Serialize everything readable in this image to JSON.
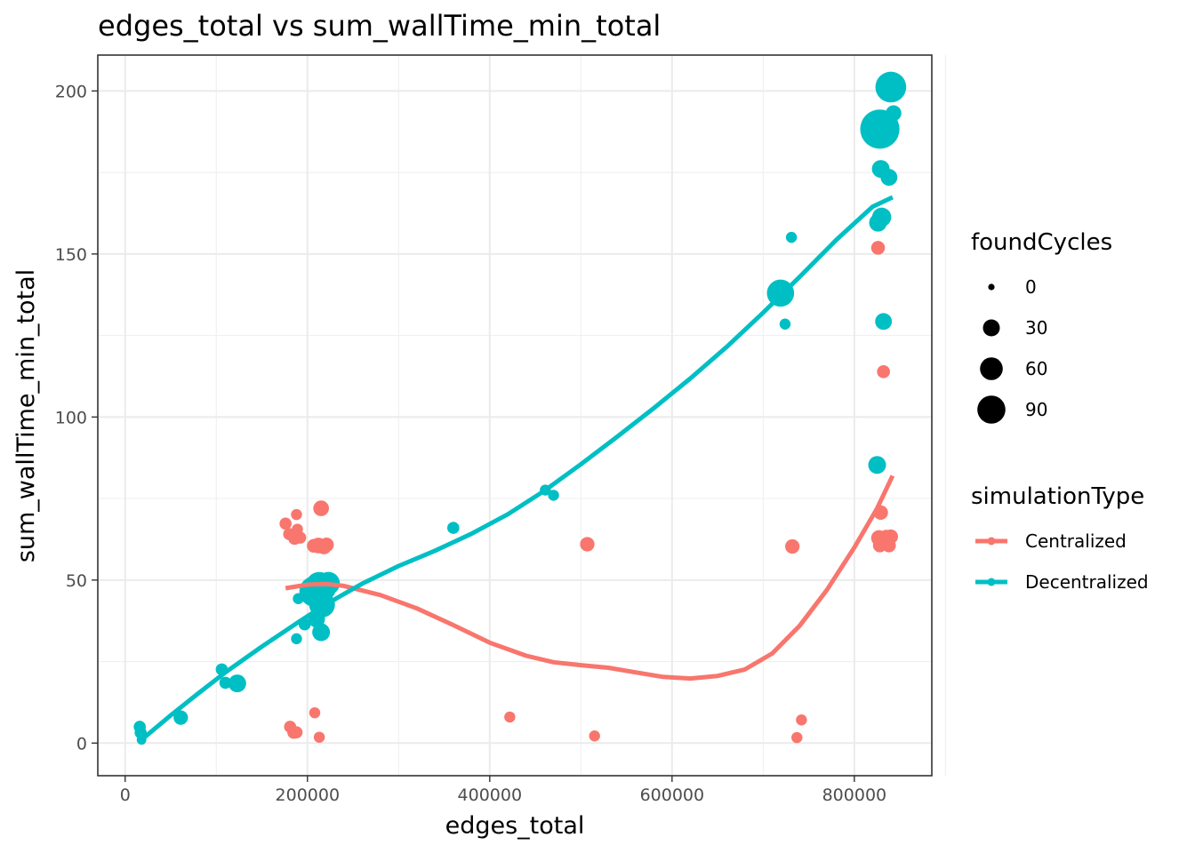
{
  "chart_data": {
    "type": "scatter",
    "title": "edges_total  vs  sum_wallTime_min_total",
    "xlabel": "edges_total",
    "ylabel": "sum_wallTime_min_total",
    "xlim": [
      -30000,
      885000
    ],
    "ylim": [
      -10,
      211
    ],
    "xticks": [
      0,
      200000,
      400000,
      600000,
      800000
    ],
    "xtick_labels": [
      "0",
      "200000",
      "400000",
      "600000",
      "800000"
    ],
    "yticks": [
      0,
      50,
      100,
      150,
      200
    ],
    "ytick_labels": [
      "0",
      "50",
      "100",
      "150",
      "200"
    ],
    "grid": true,
    "size_legend": {
      "title": "foundCycles",
      "entries": [
        {
          "label": "0",
          "value": 0
        },
        {
          "label": "30",
          "value": 30
        },
        {
          "label": "60",
          "value": 60
        },
        {
          "label": "90",
          "value": 90
        }
      ]
    },
    "color_legend": {
      "title": "simulationType",
      "entries": [
        {
          "label": "Centralized",
          "color": "#F8766D"
        },
        {
          "label": "Decentralized",
          "color": "#00BFC4"
        }
      ]
    },
    "series": [
      {
        "name": "Centralized",
        "color": "#F8766D",
        "points": [
          {
            "x": 176000,
            "y": 67.3,
            "size": 3
          },
          {
            "x": 180000,
            "y": 64.1,
            "size": 3
          },
          {
            "x": 186000,
            "y": 62.8,
            "size": 4
          },
          {
            "x": 188000,
            "y": 70.1,
            "size": 2
          },
          {
            "x": 189000,
            "y": 65.6,
            "size": 2
          },
          {
            "x": 192000,
            "y": 63.0,
            "size": 3
          },
          {
            "x": 207000,
            "y": 60.5,
            "size": 5
          },
          {
            "x": 212000,
            "y": 60.6,
            "size": 8
          },
          {
            "x": 215000,
            "y": 72.0,
            "size": 8
          },
          {
            "x": 218000,
            "y": 60.3,
            "size": 8
          },
          {
            "x": 221000,
            "y": 60.8,
            "size": 6
          },
          {
            "x": 181000,
            "y": 5.0,
            "size": 3
          },
          {
            "x": 185000,
            "y": 3.3,
            "size": 4
          },
          {
            "x": 188000,
            "y": 3.3,
            "size": 3
          },
          {
            "x": 208000,
            "y": 9.3,
            "size": 2
          },
          {
            "x": 213000,
            "y": 1.8,
            "size": 2
          },
          {
            "x": 422000,
            "y": 8.0,
            "size": 2
          },
          {
            "x": 507000,
            "y": 61.0,
            "size": 6
          },
          {
            "x": 515000,
            "y": 2.2,
            "size": 2
          },
          {
            "x": 732000,
            "y": 60.3,
            "size": 6
          },
          {
            "x": 737000,
            "y": 1.7,
            "size": 2
          },
          {
            "x": 742000,
            "y": 7.1,
            "size": 2
          },
          {
            "x": 826000,
            "y": 151.9,
            "size": 5
          },
          {
            "x": 827000,
            "y": 62.9,
            "size": 8
          },
          {
            "x": 828000,
            "y": 60.6,
            "size": 5
          },
          {
            "x": 829000,
            "y": 70.7,
            "size": 6
          },
          {
            "x": 832000,
            "y": 113.9,
            "size": 4
          },
          {
            "x": 835000,
            "y": 63.2,
            "size": 6
          },
          {
            "x": 838000,
            "y": 60.6,
            "size": 5
          },
          {
            "x": 840000,
            "y": 63.3,
            "size": 6
          }
        ],
        "smooth": [
          [
            176000,
            47.5
          ],
          [
            200000,
            48.6
          ],
          [
            220000,
            48.8
          ],
          [
            240000,
            48.2
          ],
          [
            280000,
            45.4
          ],
          [
            320000,
            41.3
          ],
          [
            360000,
            36.2
          ],
          [
            400000,
            30.8
          ],
          [
            440000,
            26.8
          ],
          [
            470000,
            24.8
          ],
          [
            500000,
            23.9
          ],
          [
            530000,
            23.1
          ],
          [
            560000,
            21.7
          ],
          [
            590000,
            20.3
          ],
          [
            620000,
            19.8
          ],
          [
            650000,
            20.6
          ],
          [
            680000,
            22.6
          ],
          [
            710000,
            27.5
          ],
          [
            740000,
            36.0
          ],
          [
            770000,
            47.0
          ],
          [
            800000,
            60.0
          ],
          [
            825000,
            72.0
          ],
          [
            842000,
            82.0
          ]
        ]
      },
      {
        "name": "Decentralized",
        "color": "#00BFC4",
        "points": [
          {
            "x": 16000,
            "y": 5.0,
            "size": 3
          },
          {
            "x": 17000,
            "y": 3.2,
            "size": 3
          },
          {
            "x": 18000,
            "y": 1.0,
            "size": 1
          },
          {
            "x": 61000,
            "y": 7.8,
            "size": 6
          },
          {
            "x": 106000,
            "y": 22.6,
            "size": 3
          },
          {
            "x": 110000,
            "y": 18.5,
            "size": 3
          },
          {
            "x": 123000,
            "y": 18.3,
            "size": 12
          },
          {
            "x": 188000,
            "y": 32.0,
            "size": 2
          },
          {
            "x": 190000,
            "y": 44.3,
            "size": 2
          },
          {
            "x": 197000,
            "y": 36.4,
            "size": 3
          },
          {
            "x": 208000,
            "y": 46.5,
            "size": 55
          },
          {
            "x": 210000,
            "y": 38.0,
            "size": 10
          },
          {
            "x": 213000,
            "y": 48.3,
            "size": 40
          },
          {
            "x": 215000,
            "y": 34.0,
            "size": 12
          },
          {
            "x": 216000,
            "y": 42.5,
            "size": 35
          },
          {
            "x": 218000,
            "y": 47.5,
            "size": 30
          },
          {
            "x": 223000,
            "y": 49.0,
            "size": 25
          },
          {
            "x": 360000,
            "y": 66.0,
            "size": 3
          },
          {
            "x": 461000,
            "y": 77.6,
            "size": 2
          },
          {
            "x": 470000,
            "y": 76.0,
            "size": 2
          },
          {
            "x": 719000,
            "y": 138.0,
            "size": 40
          },
          {
            "x": 724000,
            "y": 128.5,
            "size": 2
          },
          {
            "x": 731000,
            "y": 155.1,
            "size": 2
          },
          {
            "x": 825000,
            "y": 85.3,
            "size": 12
          },
          {
            "x": 826000,
            "y": 159.6,
            "size": 12
          },
          {
            "x": 828000,
            "y": 188.3,
            "size": 100
          },
          {
            "x": 829000,
            "y": 176.1,
            "size": 12
          },
          {
            "x": 830000,
            "y": 161.3,
            "size": 15
          },
          {
            "x": 832000,
            "y": 129.3,
            "size": 10
          },
          {
            "x": 838000,
            "y": 173.5,
            "size": 10
          },
          {
            "x": 840000,
            "y": 201.2,
            "size": 55
          },
          {
            "x": 843000,
            "y": 193.2,
            "size": 8
          }
        ],
        "smooth": [
          [
            18000,
            1.0
          ],
          [
            50000,
            8.5
          ],
          [
            80000,
            15.2
          ],
          [
            110000,
            21.7
          ],
          [
            150000,
            29.6
          ],
          [
            190000,
            37.1
          ],
          [
            220000,
            42.5
          ],
          [
            260000,
            48.9
          ],
          [
            300000,
            54.3
          ],
          [
            340000,
            59.0
          ],
          [
            380000,
            64.2
          ],
          [
            420000,
            70.2
          ],
          [
            460000,
            77.4
          ],
          [
            500000,
            85.5
          ],
          [
            540000,
            94.0
          ],
          [
            580000,
            102.7
          ],
          [
            620000,
            111.8
          ],
          [
            660000,
            121.5
          ],
          [
            700000,
            132.0
          ],
          [
            740000,
            143.0
          ],
          [
            780000,
            154.3
          ],
          [
            820000,
            164.5
          ],
          [
            842000,
            167.4
          ]
        ]
      }
    ]
  }
}
